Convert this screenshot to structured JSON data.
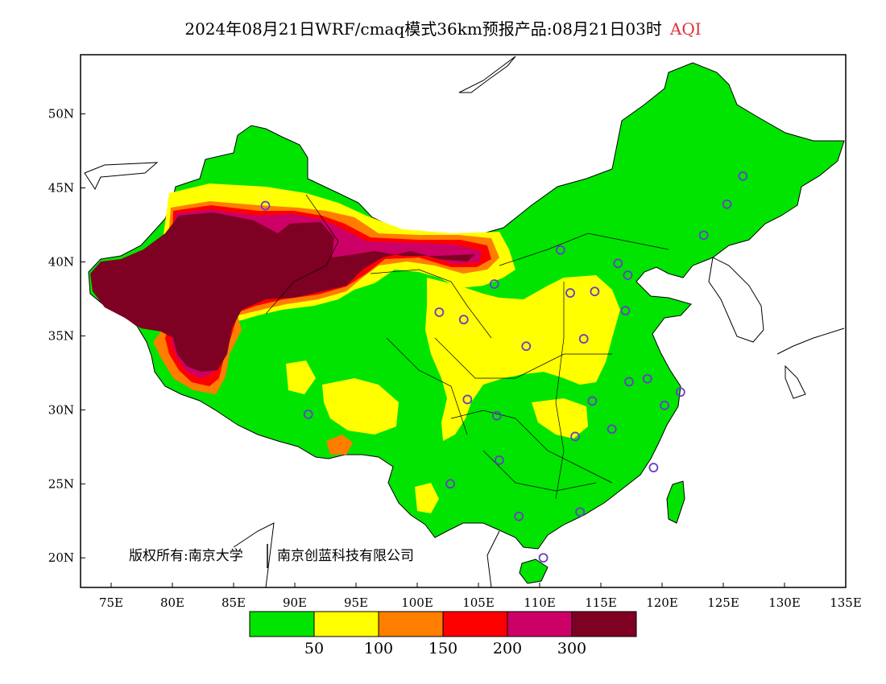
{
  "title": {
    "text": "2024年08月21日WRF/cmaq模式36km预报产品:08月21日03时",
    "variable": "AQI"
  },
  "axes": {
    "lon_ticks": [
      "75E",
      "80E",
      "85E",
      "90E",
      "95E",
      "100E",
      "105E",
      "110E",
      "115E",
      "120E",
      "125E",
      "130E",
      "135E"
    ],
    "lat_ticks": [
      "50N",
      "45N",
      "40N",
      "35N",
      "30N",
      "25N",
      "20N"
    ]
  },
  "copyright": {
    "left": "版权所有:南京大学",
    "right": "南京创蓝科技有限公司"
  },
  "colorbar": {
    "colors": [
      "#00e400",
      "#ffff00",
      "#ff7e00",
      "#ff0000",
      "#cc0066",
      "#7e0023"
    ],
    "labels": [
      "50",
      "100",
      "150",
      "200",
      "300"
    ]
  },
  "map_colors": {
    "good": "#00e400",
    "moderate": "#ffff00",
    "usg": "#ff7e00",
    "unhealthy": "#ff0000",
    "very_unhealthy": "#cc0066",
    "hazardous": "#7e0023",
    "station_marker": "#6a3cc8"
  },
  "stations": [
    {
      "lon": 87.6,
      "lat": 43.8
    },
    {
      "lon": 91.1,
      "lat": 29.7
    },
    {
      "lon": 101.8,
      "lat": 36.6
    },
    {
      "lon": 103.8,
      "lat": 36.1
    },
    {
      "lon": 106.3,
      "lat": 38.5
    },
    {
      "lon": 104.1,
      "lat": 30.7
    },
    {
      "lon": 106.5,
      "lat": 29.6
    },
    {
      "lon": 106.7,
      "lat": 26.6
    },
    {
      "lon": 102.7,
      "lat": 25.0
    },
    {
      "lon": 108.3,
      "lat": 22.8
    },
    {
      "lon": 110.3,
      "lat": 20.0
    },
    {
      "lon": 113.3,
      "lat": 23.1
    },
    {
      "lon": 108.9,
      "lat": 34.3
    },
    {
      "lon": 111.7,
      "lat": 40.8
    },
    {
      "lon": 112.5,
      "lat": 37.9
    },
    {
      "lon": 114.5,
      "lat": 38.0
    },
    {
      "lon": 116.4,
      "lat": 39.9
    },
    {
      "lon": 117.2,
      "lat": 39.1
    },
    {
      "lon": 117.0,
      "lat": 36.7
    },
    {
      "lon": 113.6,
      "lat": 34.8
    },
    {
      "lon": 114.3,
      "lat": 30.6
    },
    {
      "lon": 112.9,
      "lat": 28.2
    },
    {
      "lon": 115.9,
      "lat": 28.7
    },
    {
      "lon": 117.3,
      "lat": 31.9
    },
    {
      "lon": 118.8,
      "lat": 32.1
    },
    {
      "lon": 120.2,
      "lat": 30.3
    },
    {
      "lon": 121.5,
      "lat": 31.2
    },
    {
      "lon": 119.3,
      "lat": 26.1
    },
    {
      "lon": 123.4,
      "lat": 41.8
    },
    {
      "lon": 125.3,
      "lat": 43.9
    },
    {
      "lon": 126.6,
      "lat": 45.8
    }
  ]
}
